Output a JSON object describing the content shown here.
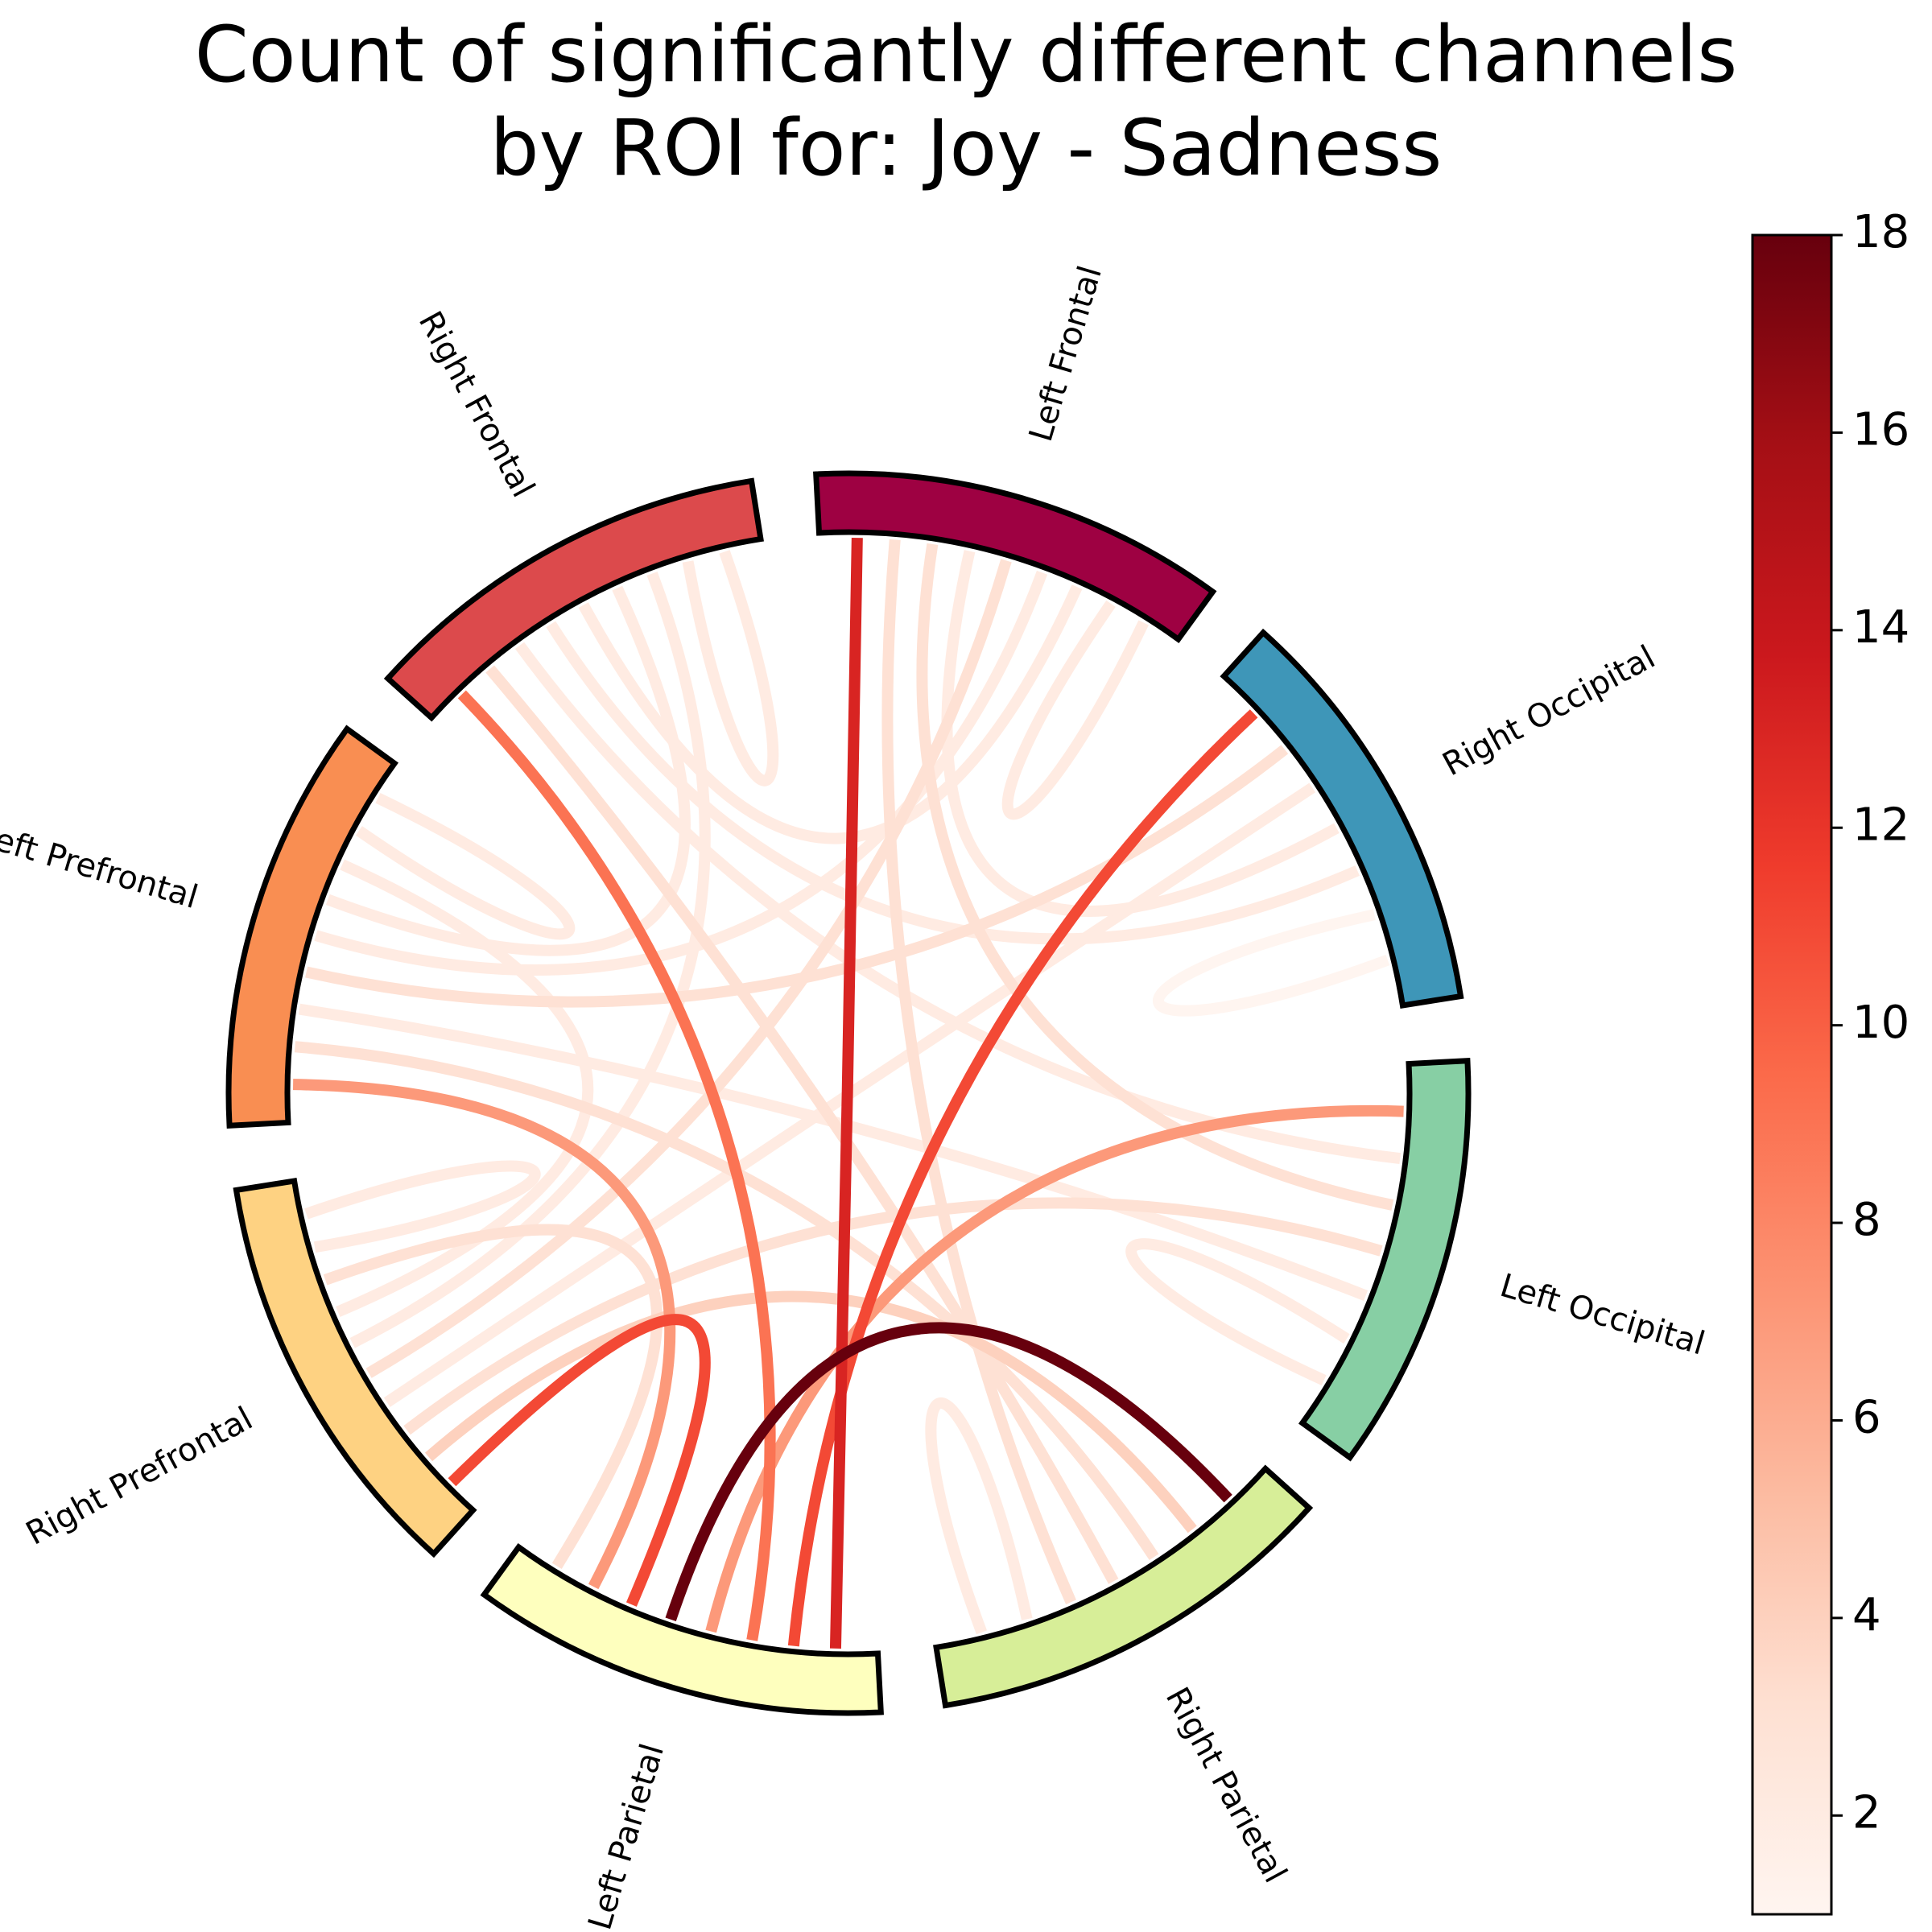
{
  "title": {
    "line1": "Count of significantly different channels",
    "line2": "by ROI for: Joy - Sadness"
  },
  "chart_data": {
    "type": "chord",
    "nodes": [
      {
        "name": "Left Frontal",
        "color": "#9e0142"
      },
      {
        "name": "Right Occipital",
        "color": "#3e96b8"
      },
      {
        "name": "Left Occipital",
        "color": "#87cfa4"
      },
      {
        "name": "Right Parietal",
        "color": "#d7ee98"
      },
      {
        "name": "Left Parietal",
        "color": "#feffbe"
      },
      {
        "name": "Right Prefrontal",
        "color": "#fed282"
      },
      {
        "name": "Left Prefrontal",
        "color": "#f98e52"
      },
      {
        "name": "Right Frontal",
        "color": "#dc4a4c"
      }
    ],
    "links": [
      {
        "source": "Left Frontal",
        "target": "Left Parietal",
        "value": 13
      },
      {
        "source": "Right Occipital",
        "target": "Left Parietal",
        "value": 11
      },
      {
        "source": "Right Frontal",
        "target": "Left Parietal",
        "value": 9
      },
      {
        "source": "Left Occipital",
        "target": "Left Parietal",
        "value": 7
      },
      {
        "source": "Right Parietal",
        "target": "Left Parietal",
        "value": 18
      },
      {
        "source": "Right Prefrontal",
        "target": "Left Parietal",
        "value": 11
      },
      {
        "source": "Left Prefrontal",
        "target": "Left Parietal",
        "value": 7
      },
      {
        "source": "Right Parietal",
        "target": "Right Prefrontal",
        "value": 4
      },
      {
        "source": "Right Parietal",
        "target": "Left Prefrontal",
        "value": 3
      },
      {
        "source": "Right Parietal",
        "target": "Right Frontal",
        "value": 3
      },
      {
        "source": "Right Parietal",
        "target": "Left Frontal",
        "value": 3
      },
      {
        "source": "Left Occipital",
        "target": "Right Frontal",
        "value": 2
      },
      {
        "source": "Left Occipital",
        "target": "Left Frontal",
        "value": 3
      },
      {
        "source": "Left Occipital",
        "target": "Right Prefrontal",
        "value": 3
      },
      {
        "source": "Left Occipital",
        "target": "Left Prefrontal",
        "value": 2
      },
      {
        "source": "Right Occipital",
        "target": "Left Prefrontal",
        "value": 3
      },
      {
        "source": "Right Occipital",
        "target": "Right Prefrontal",
        "value": 2
      },
      {
        "source": "Right Occipital",
        "target": "Left Frontal",
        "value": 2
      },
      {
        "source": "Right Occipital",
        "target": "Right Frontal",
        "value": 2
      },
      {
        "source": "Left Frontal",
        "target": "Right Prefrontal",
        "value": 3
      },
      {
        "source": "Left Frontal",
        "target": "Left Prefrontal",
        "value": 2
      },
      {
        "source": "Left Frontal",
        "target": "Right Frontal",
        "value": 2
      },
      {
        "source": "Right Frontal",
        "target": "Left Prefrontal",
        "value": 2
      },
      {
        "source": "Right Frontal",
        "target": "Right Prefrontal",
        "value": 2
      },
      {
        "source": "Left Prefrontal",
        "target": "Right Prefrontal",
        "value": 2
      },
      {
        "source": "Left Parietal",
        "target": "Right Prefrontal",
        "value": 3
      },
      {
        "source": "Left Frontal",
        "target": "Left Frontal",
        "value": 2
      },
      {
        "source": "Right Occipital",
        "target": "Right Occipital",
        "value": 1
      },
      {
        "source": "Left Occipital",
        "target": "Left Occipital",
        "value": 2
      },
      {
        "source": "Right Parietal",
        "target": "Right Parietal",
        "value": 2
      },
      {
        "source": "Right Frontal",
        "target": "Right Frontal",
        "value": 2
      },
      {
        "source": "Right Prefrontal",
        "target": "Right Prefrontal",
        "value": 2
      },
      {
        "source": "Left Prefrontal",
        "target": "Left Prefrontal",
        "value": 2
      }
    ],
    "colorbar": {
      "min": 1,
      "max": 18,
      "ticks": [
        "2",
        "4",
        "6",
        "8",
        "10",
        "12",
        "14",
        "16",
        "18"
      ],
      "colormap": "Reds"
    }
  }
}
